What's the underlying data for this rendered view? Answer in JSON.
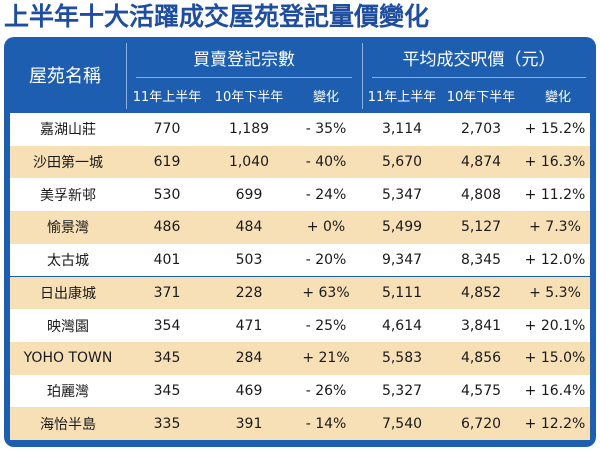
{
  "title": "上半年十大活躍成交屋苑登記量價變化",
  "colors": {
    "title": "#1f4ea1",
    "frame": "#1e5eb1",
    "row_alt": "#f7dfb6",
    "row": "#ffffff"
  },
  "chart_data": {
    "type": "table",
    "title": "上半年十大活躍成交屋苑登記量價變化",
    "column_header": "屋苑名稱",
    "groups": [
      {
        "label": "買賣登記宗數",
        "subheaders": [
          "11年上半年",
          "10年下半年",
          "變化"
        ]
      },
      {
        "label": "平均成交呎價（元）",
        "subheaders": [
          "11年上半年",
          "10年下半年",
          "變化"
        ]
      }
    ],
    "rows": [
      {
        "name": "嘉湖山莊",
        "vol_11h1": "770",
        "vol_10h2": "1,189",
        "vol_chg": "- 35%",
        "px_11h1": "3,114",
        "px_10h2": "2,703",
        "px_chg": "+ 15.2%"
      },
      {
        "name": "沙田第一城",
        "vol_11h1": "619",
        "vol_10h2": "1,040",
        "vol_chg": "- 40%",
        "px_11h1": "5,670",
        "px_10h2": "4,874",
        "px_chg": "+ 16.3%"
      },
      {
        "name": "美孚新邨",
        "vol_11h1": "530",
        "vol_10h2": "699",
        "vol_chg": "- 24%",
        "px_11h1": "5,347",
        "px_10h2": "4,808",
        "px_chg": "+ 11.2%"
      },
      {
        "name": "愉景灣",
        "vol_11h1": "486",
        "vol_10h2": "484",
        "vol_chg": "+ 0%",
        "px_11h1": "5,499",
        "px_10h2": "5,127",
        "px_chg": "+ 7.3%"
      },
      {
        "name": "太古城",
        "vol_11h1": "401",
        "vol_10h2": "503",
        "vol_chg": "- 20%",
        "px_11h1": "9,347",
        "px_10h2": "8,345",
        "px_chg": "+ 12.0%"
      },
      {
        "name": "日出康城",
        "vol_11h1": "371",
        "vol_10h2": "228",
        "vol_chg": "+ 63%",
        "px_11h1": "5,111",
        "px_10h2": "4,852",
        "px_chg": "+ 5.3%"
      },
      {
        "name": "映灣園",
        "vol_11h1": "354",
        "vol_10h2": "471",
        "vol_chg": "- 25%",
        "px_11h1": "4,614",
        "px_10h2": "3,841",
        "px_chg": "+ 20.1%"
      },
      {
        "name": "YOHO TOWN",
        "vol_11h1": "345",
        "vol_10h2": "284",
        "vol_chg": "+ 21%",
        "px_11h1": "5,583",
        "px_10h2": "4,856",
        "px_chg": "+ 15.0%"
      },
      {
        "name": "珀麗灣",
        "vol_11h1": "345",
        "vol_10h2": "469",
        "vol_chg": "- 26%",
        "px_11h1": "5,327",
        "px_10h2": "4,575",
        "px_chg": "+ 16.4%"
      },
      {
        "name": "海怡半島",
        "vol_11h1": "335",
        "vol_10h2": "391",
        "vol_chg": "- 14%",
        "px_11h1": "7,540",
        "px_10h2": "6,720",
        "px_chg": "+ 12.2%"
      }
    ]
  }
}
